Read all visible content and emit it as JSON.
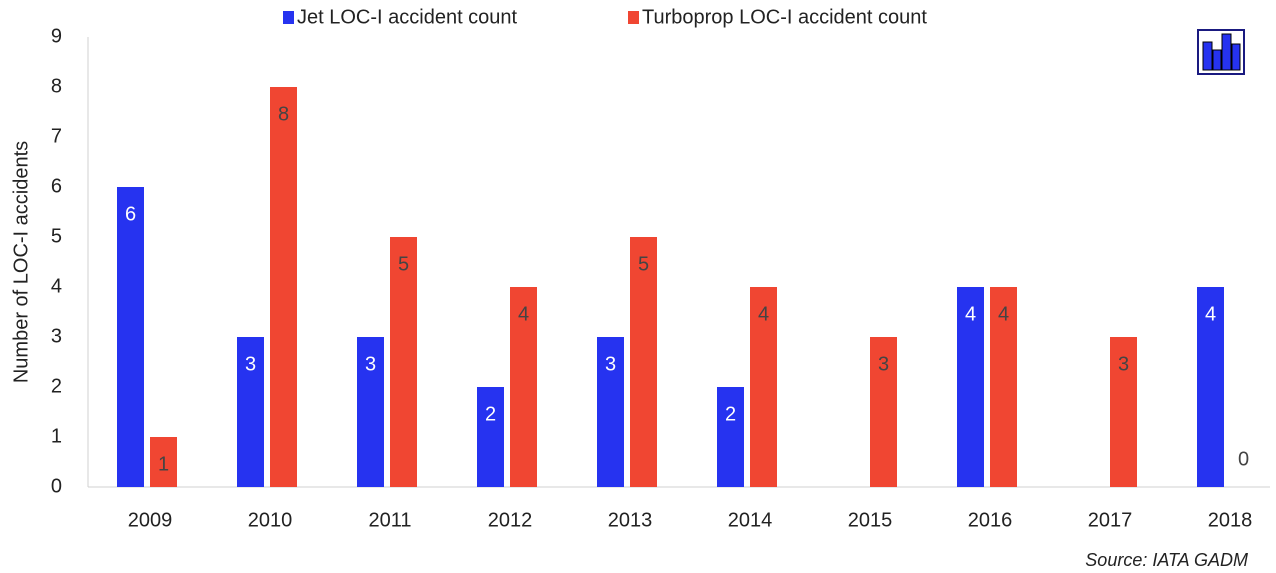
{
  "chart_data": {
    "type": "bar",
    "y_label": "Number of LOC-I accidents",
    "source": "Source: IATA GADM",
    "categories": [
      "2009",
      "2010",
      "2011",
      "2012",
      "2013",
      "2014",
      "2015",
      "2016",
      "2017",
      "2018"
    ],
    "series": [
      {
        "name": "Jet LOC-I accident count",
        "color": "#2633f0",
        "label_color": "#ffffff",
        "values": [
          6,
          3,
          3,
          2,
          3,
          2,
          null,
          4,
          null,
          4
        ]
      },
      {
        "name": "Turboprop LOC-I accident count",
        "color": "#f04632",
        "label_color": "#444444",
        "values": [
          1,
          8,
          5,
          4,
          5,
          4,
          3,
          4,
          3,
          0
        ]
      }
    ],
    "ylim": [
      0,
      9
    ],
    "yticks": [
      0,
      1,
      2,
      3,
      4,
      5,
      6,
      7,
      8,
      9
    ],
    "grid": false,
    "legend": "top"
  }
}
